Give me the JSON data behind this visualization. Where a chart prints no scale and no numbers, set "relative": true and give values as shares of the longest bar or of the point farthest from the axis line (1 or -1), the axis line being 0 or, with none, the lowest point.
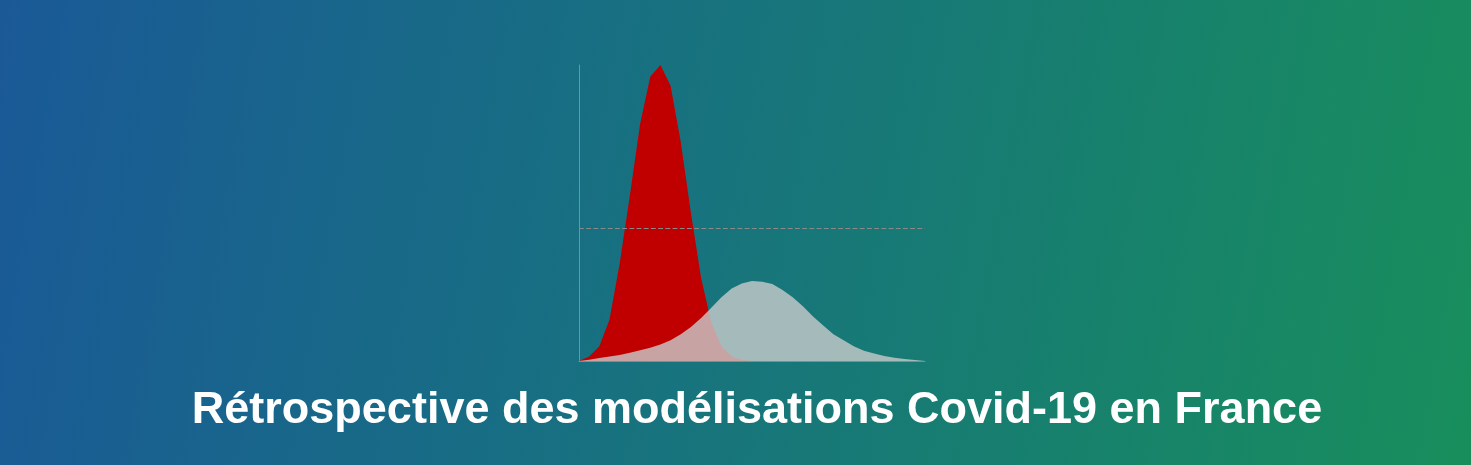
{
  "chart_data": {
    "type": "area",
    "title": "Rétrospective des modélisations Covid-19 en France",
    "relative": true,
    "categories": [
      null,
      null,
      null,
      null,
      null,
      null,
      null,
      null,
      null,
      null,
      null,
      null,
      null,
      null,
      null,
      null,
      null,
      null,
      null,
      null,
      null,
      null,
      null,
      null,
      null,
      null,
      null,
      null,
      null,
      null,
      null,
      null,
      null,
      null,
      null
    ],
    "series": [
      {
        "color": "#c00000",
        "values": [
          0,
          0.015,
          0.05,
          0.14,
          0.33,
          0.56,
          0.8,
          0.96,
          1,
          0.93,
          0.74,
          0.5,
          0.28,
          0.13,
          0.05,
          0.015,
          0.003,
          0,
          0,
          0,
          0,
          0,
          0,
          0,
          0,
          0,
          0,
          0,
          0,
          0,
          0,
          0,
          0,
          0,
          0
        ]
      },
      {
        "color": "#c9cccc",
        "values": [
          0,
          0.004,
          0.01,
          0.015,
          0.02,
          0.028,
          0.036,
          0.045,
          0.056,
          0.07,
          0.09,
          0.115,
          0.145,
          0.18,
          0.215,
          0.245,
          0.262,
          0.27,
          0.268,
          0.26,
          0.24,
          0.215,
          0.185,
          0.15,
          0.12,
          0.09,
          0.07,
          0.05,
          0.035,
          0.025,
          0.017,
          0.011,
          0.007,
          0.003,
          0
        ]
      }
    ],
    "ref_lines": [
      {
        "axis": "y",
        "value": 0.45,
        "color": "#8a8a8a",
        "line_style": "dashed"
      }
    ]
  }
}
